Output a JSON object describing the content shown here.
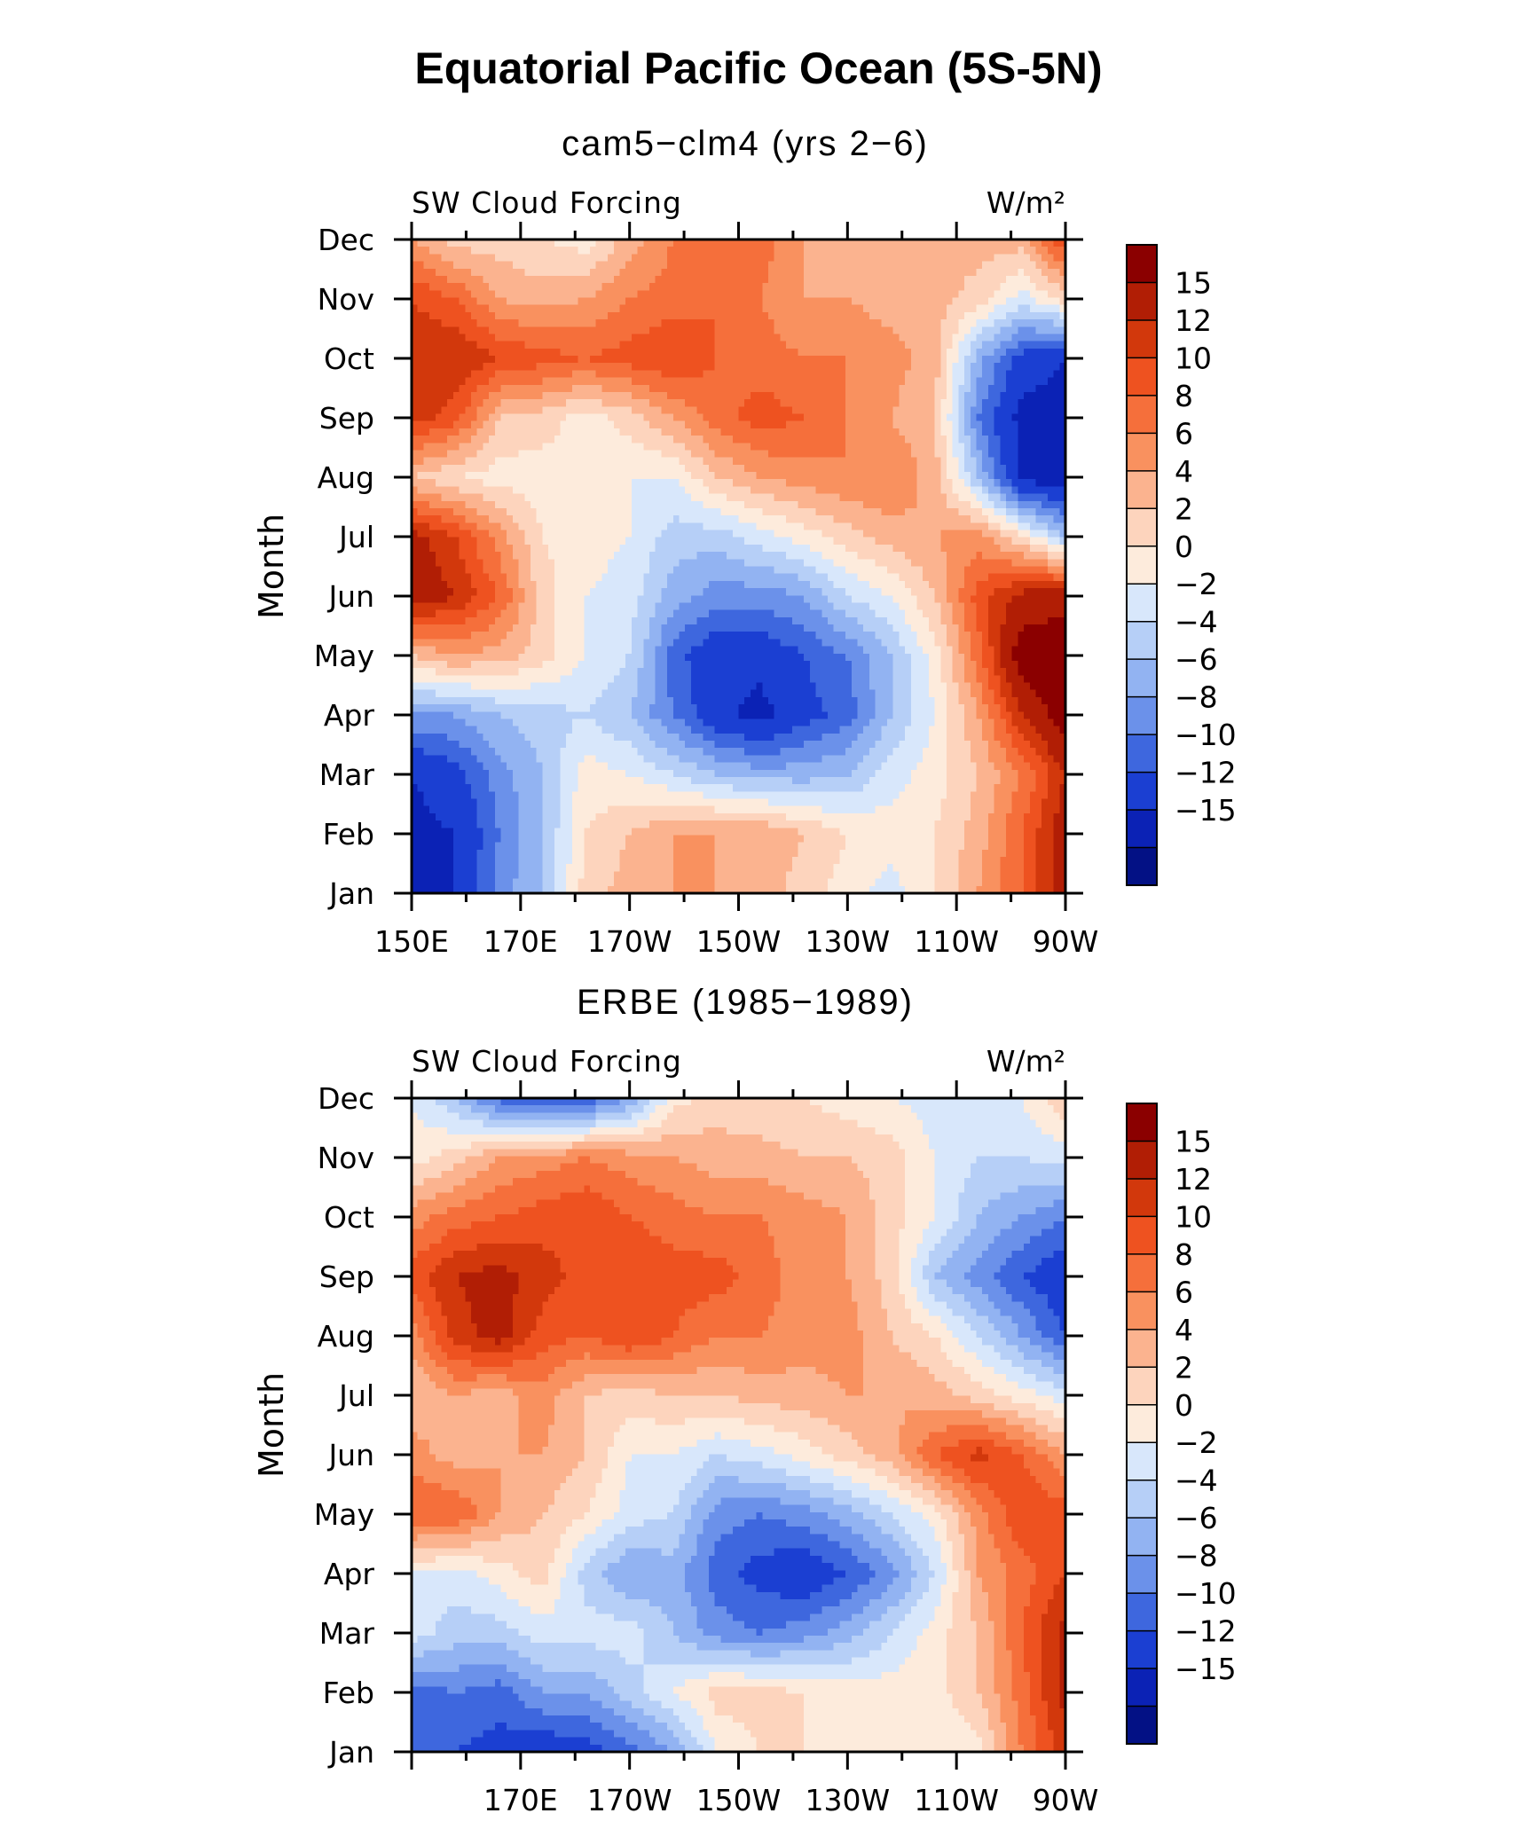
{
  "main_title": "Equatorial Pacific Ocean (5S-5N)",
  "chart_data": [
    {
      "type": "heatmap",
      "title": "cam5−clm4 (yrs 2−6)",
      "left_label": "SW Cloud Forcing",
      "right_label": "W/m²",
      "ylabel": "Month",
      "y_ticks": [
        "Jan",
        "Feb",
        "Mar",
        "Apr",
        "May",
        "Jun",
        "Jul",
        "Aug",
        "Sep",
        "Oct",
        "Nov",
        "Dec"
      ],
      "x_ticks": [
        "150E",
        "170E",
        "170W",
        "150W",
        "130W",
        "110W",
        "90W"
      ],
      "x_range": [
        "150E",
        "90W"
      ],
      "levels": [
        "15",
        "12",
        "10",
        "8",
        "6",
        "4",
        "2",
        "0",
        "−2",
        "−4",
        "−6",
        "−8",
        "−10",
        "−12",
        "−15"
      ],
      "colors": [
        "#8b0000",
        "#b11e05",
        "#d2380c",
        "#ee5220",
        "#f56f3b",
        "#f9915f",
        "#fbb38f",
        "#fdd4bd",
        "#fdebdc",
        "#d8e7fb",
        "#b6cff7",
        "#92b3f2",
        "#6b91ea",
        "#3e67de",
        "#1b3fd2",
        "#0b22b5",
        "#031185"
      ],
      "field": [
        [
          -16,
          -15,
          -9,
          -6,
          1,
          3,
          4,
          4,
          3,
          1,
          -1,
          -3,
          0,
          4,
          8,
          14
        ],
        [
          -16,
          -15,
          -10,
          -6,
          0,
          2,
          4,
          4,
          4,
          2,
          0,
          -1,
          0,
          3,
          8,
          14
        ],
        [
          -15,
          -13,
          -9,
          -6,
          -1,
          -2,
          -4,
          -6,
          -7,
          -7,
          -6,
          -3,
          -1,
          2,
          6,
          12
        ],
        [
          -8,
          -8,
          -6,
          -5,
          -4,
          -6,
          -10,
          -14,
          -16,
          -13,
          -11,
          -6,
          -2,
          4,
          12,
          17
        ],
        [
          2,
          4,
          3,
          1,
          -2,
          -4,
          -11,
          -14,
          -14,
          -12,
          -10,
          -6,
          -1,
          7,
          17,
          17
        ],
        [
          14,
          12,
          8,
          1,
          -2,
          -3,
          -7,
          -9,
          -9,
          -8,
          -4,
          -2,
          2,
          9,
          13,
          14
        ],
        [
          13,
          10,
          5,
          0,
          -1,
          -2,
          -5,
          -5,
          -3,
          -1,
          1,
          3,
          4,
          5,
          0,
          -6
        ],
        [
          2,
          0,
          -1,
          -1,
          -1,
          -2,
          -2,
          2,
          4,
          5,
          6,
          6,
          3,
          -6,
          -16,
          -17
        ],
        [
          11,
          9,
          2,
          1,
          -1,
          1,
          4,
          7,
          9,
          8,
          6,
          4,
          2,
          -10,
          -16,
          -17
        ],
        [
          12,
          12,
          10,
          9,
          8,
          9,
          10,
          8,
          7,
          6,
          6,
          5,
          3,
          -7,
          -13,
          -15
        ],
        [
          10,
          8,
          4,
          3,
          4,
          6,
          7,
          8,
          6,
          4,
          4,
          3,
          3,
          1,
          -3,
          1
        ],
        [
          4,
          1,
          1,
          0,
          -1,
          3,
          6,
          7,
          7,
          4,
          3,
          2,
          3,
          3,
          3,
          10
        ]
      ]
    },
    {
      "type": "heatmap",
      "title": "ERBE (1985−1989)",
      "left_label": "SW Cloud Forcing",
      "right_label": "W/m²",
      "ylabel": "Month",
      "y_ticks": [
        "Jan",
        "Feb",
        "Mar",
        "Apr",
        "May",
        "Jun",
        "Jul",
        "Aug",
        "Sep",
        "Oct",
        "Nov",
        "Dec"
      ],
      "x_ticks": [
        "170E",
        "170W",
        "150W",
        "130W",
        "110W",
        "90W"
      ],
      "x_range": [
        "150E",
        "90W"
      ],
      "levels": [
        "15",
        "12",
        "10",
        "8",
        "6",
        "4",
        "2",
        "0",
        "−2",
        "−4",
        "−6",
        "−8",
        "−10",
        "−12",
        "−15"
      ],
      "colors": [
        "#8b0000",
        "#b11e05",
        "#d2380c",
        "#ee5220",
        "#f56f3b",
        "#f9915f",
        "#fbb38f",
        "#fdd4bd",
        "#fdebdc",
        "#d8e7fb",
        "#b6cff7",
        "#92b3f2",
        "#6b91ea",
        "#3e67de",
        "#1b3fd2",
        "#0b22b5",
        "#031185"
      ],
      "field": [
        [
          -12,
          -12,
          -13,
          -14,
          -13,
          -11,
          -8,
          -2,
          0,
          0,
          -1,
          -1,
          -2,
          -1,
          6,
          11
        ],
        [
          -11,
          -10,
          -11,
          -8,
          -8,
          -5,
          -2,
          1,
          1,
          0,
          -1,
          -1,
          -1,
          2,
          7,
          13
        ],
        [
          -3,
          -5,
          -5,
          -3,
          -3,
          -3,
          -6,
          -9,
          -10,
          -9,
          -7,
          -4,
          -1,
          2,
          8,
          13
        ],
        [
          -2,
          -3,
          -1,
          1,
          -5,
          -8,
          -7,
          -11,
          -13,
          -14,
          -12,
          -9,
          -4,
          4,
          7,
          10
        ],
        [
          8,
          8,
          4,
          2,
          0,
          -3,
          -4,
          -9,
          -10,
          -9,
          -7,
          -4,
          -1,
          5,
          10,
          9
        ],
        [
          5,
          3,
          4,
          4,
          2,
          -2,
          -2,
          -4,
          -3,
          -1,
          1,
          3,
          8,
          11,
          8,
          4
        ],
        [
          2,
          4,
          3,
          5,
          2,
          1,
          2,
          2,
          3,
          3,
          4,
          4,
          3,
          1,
          -1,
          -3
        ],
        [
          5,
          11,
          13,
          9,
          8,
          10,
          8,
          6,
          6,
          5,
          5,
          2,
          0,
          -4,
          -8,
          -12
        ],
        [
          9,
          12,
          13,
          11,
          9,
          10,
          9,
          9,
          7,
          5,
          4,
          1,
          -6,
          -9,
          -12,
          -14
        ],
        [
          5,
          7,
          8,
          9,
          10,
          8,
          7,
          6,
          6,
          5,
          4,
          1,
          -2,
          -6,
          -8,
          -10
        ],
        [
          -1,
          1,
          4,
          5,
          6,
          5,
          4,
          3,
          3,
          2,
          2,
          1,
          -2,
          -4,
          -4,
          -3
        ],
        [
          -2,
          -6,
          -11,
          -13,
          -12,
          -8,
          -1,
          1,
          0,
          0,
          -1,
          -2,
          -3,
          -3,
          -2,
          2
        ]
      ]
    }
  ]
}
